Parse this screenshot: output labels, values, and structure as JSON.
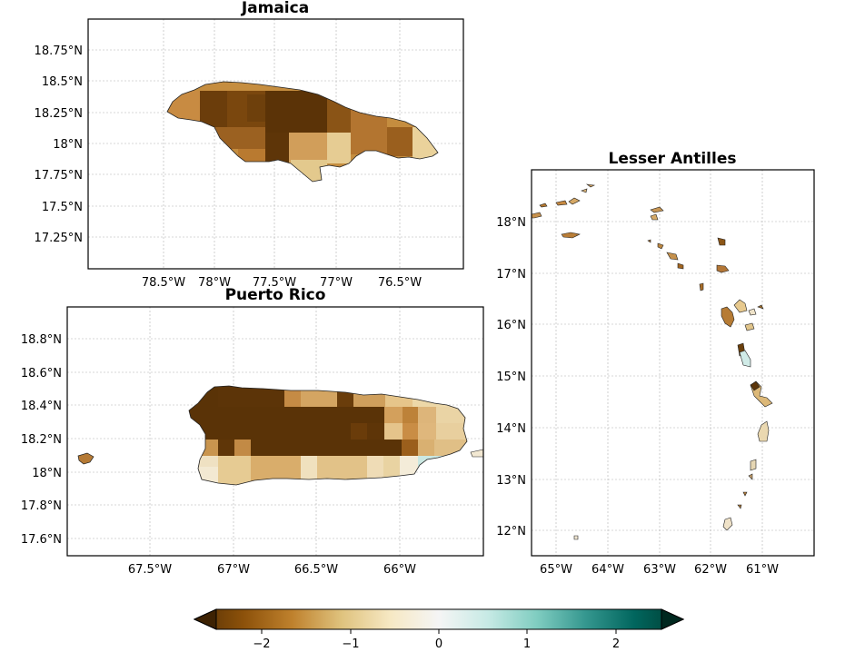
{
  "panels": {
    "jamaica": {
      "title": "Jamaica",
      "lon_labels": [
        "78.5°W",
        "78°W",
        "77.5°W",
        "77°W",
        "76.5°W"
      ],
      "lat_labels": [
        "18.75°N",
        "18.5°N",
        "18.25°N",
        "18°N",
        "17.75°N",
        "17.5°N",
        "17.25°N"
      ]
    },
    "puerto_rico": {
      "title": "Puerto Rico",
      "lon_labels": [
        "67.5°W",
        "67°W",
        "66.5°W",
        "66°W"
      ],
      "lat_labels": [
        "18.8°N",
        "18.6°N",
        "18.4°N",
        "18.2°N",
        "18°N",
        "17.8°N",
        "17.6°N"
      ]
    },
    "lesser_antilles": {
      "title": "Lesser Antilles",
      "lon_labels": [
        "65°W",
        "64°W",
        "63°W",
        "62°W",
        "61°W"
      ],
      "lat_labels": [
        "18°N",
        "17°N",
        "16°N",
        "15°N",
        "14°N",
        "13°N",
        "12°N"
      ]
    }
  },
  "colorbar": {
    "tick_labels": [
      "−2",
      "−1",
      "0",
      "1",
      "2"
    ],
    "min": -2.7,
    "max": 2.7,
    "extend": "both",
    "colormap": "BrBG",
    "colors": [
      "#543005",
      "#8c510a",
      "#bf812d",
      "#dfc27d",
      "#f6e8c3",
      "#f5f5f5",
      "#c7eae5",
      "#80cdc1",
      "#35978f",
      "#01665e",
      "#003c30"
    ]
  }
}
